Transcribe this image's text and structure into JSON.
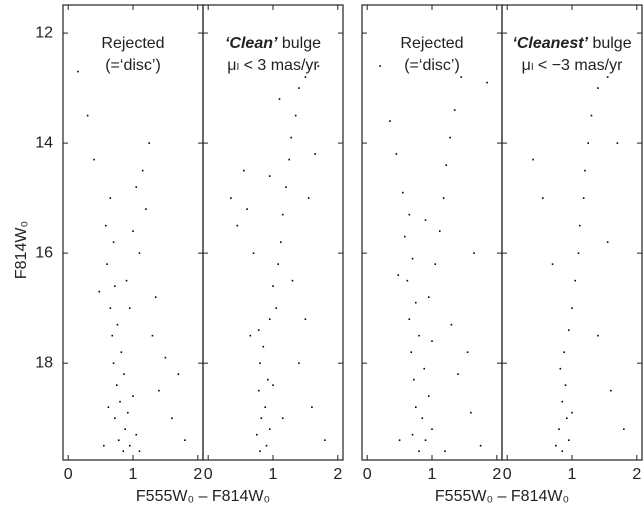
{
  "chart_data": [
    {
      "type": "scatter",
      "color": "#000000",
      "ylabel": "F814W₀",
      "ytick_labels": true,
      "xlabel": "F555W₀ – F814W₀",
      "label_lines": [
        [
          {
            "text": "Rejected"
          }
        ],
        [
          {
            "text": "(=‘disc’)"
          }
        ]
      ],
      "xlim": [
        -0.08,
        2.08
      ],
      "ylim": [
        19.76,
        11.49
      ],
      "xticks": [
        0,
        1,
        2
      ],
      "yticks": [
        12,
        14,
        16,
        18
      ],
      "x": [
        0.85,
        0.95,
        0.78,
        1.05,
        0.88,
        0.72,
        0.92,
        0.8,
        1.0,
        0.75,
        0.86,
        0.7,
        0.82,
        0.68,
        0.76,
        0.65,
        0.72,
        0.6,
        0.7,
        0.58,
        0.65,
        0.9,
        1.1,
        1.2,
        1.15,
        1.25,
        1.05,
        0.4,
        0.3,
        1.4,
        1.6,
        1.8,
        1.3,
        1.5,
        0.55,
        0.95,
        1.2,
        0.15,
        1.0,
        0.62,
        1.1,
        1.35,
        0.48,
        1.7
      ],
      "values": [
        19.6,
        19.5,
        19.4,
        19.3,
        19.2,
        19.0,
        18.9,
        18.7,
        18.6,
        18.4,
        18.2,
        18.0,
        17.8,
        17.5,
        17.3,
        17.0,
        16.6,
        16.2,
        15.8,
        15.5,
        15.0,
        16.5,
        16.0,
        15.2,
        14.5,
        14.0,
        14.8,
        14.3,
        13.5,
        18.5,
        19.0,
        19.4,
        17.5,
        17.9,
        19.5,
        17.0,
        12.6,
        12.7,
        15.6,
        18.8,
        19.6,
        16.8,
        16.7,
        18.2
      ]
    },
    {
      "type": "scatter",
      "color": "#000000",
      "ytick_labels": false,
      "label_lines": [
        [
          {
            "text": "‘Clean’",
            "bold_italic": true
          },
          {
            "text": " bulge"
          }
        ],
        [
          {
            "text": "μₗ < 3 mas/yr"
          }
        ]
      ],
      "xlim": [
        -0.08,
        2.08
      ],
      "ylim": [
        19.76,
        11.49
      ],
      "xticks": [
        0,
        1,
        2
      ],
      "yticks": [
        12,
        14,
        16,
        18
      ],
      "x": [
        0.8,
        0.9,
        0.75,
        0.95,
        0.82,
        0.88,
        0.78,
        0.92,
        0.8,
        0.85,
        0.78,
        0.95,
        1.05,
        1.0,
        1.08,
        1.12,
        1.15,
        1.2,
        1.25,
        1.28,
        1.35,
        1.4,
        0.7,
        0.6,
        0.55,
        0.45,
        1.4,
        1.6,
        1.8,
        1.5,
        1.3,
        1.55,
        1.65,
        1.5,
        1.7,
        0.35,
        0.65,
        1.0,
        1.15,
        0.95,
        1.1
      ],
      "values": [
        19.6,
        19.5,
        19.3,
        19.2,
        19.0,
        18.8,
        18.5,
        18.3,
        18.0,
        17.7,
        17.4,
        17.2,
        17.0,
        16.6,
        16.2,
        15.8,
        15.3,
        14.8,
        14.3,
        13.9,
        13.5,
        13.0,
        16.0,
        15.2,
        14.5,
        15.5,
        18.0,
        18.8,
        19.4,
        17.2,
        16.5,
        15.0,
        14.2,
        12.8,
        12.6,
        15.0,
        17.5,
        18.4,
        19.0,
        14.6,
        13.2
      ]
    },
    {
      "type": "scatter",
      "color": "#000000",
      "ytick_labels": false,
      "xlabel": "F555W₀ – F814W₀",
      "label_lines": [
        [
          {
            "text": "Rejected"
          }
        ],
        [
          {
            "text": "(=‘disc’)"
          }
        ]
      ],
      "xlim": [
        -0.08,
        2.08
      ],
      "ylim": [
        19.76,
        11.49
      ],
      "xticks": [
        0,
        1,
        2
      ],
      "yticks": [
        12,
        14,
        16,
        18
      ],
      "x": [
        0.8,
        0.9,
        0.7,
        1.0,
        0.85,
        0.75,
        0.95,
        0.72,
        0.88,
        0.68,
        0.8,
        0.65,
        0.75,
        0.62,
        0.7,
        0.58,
        0.65,
        0.55,
        0.95,
        1.05,
        1.12,
        1.18,
        1.22,
        1.28,
        1.35,
        1.45,
        0.45,
        0.35,
        0.2,
        1.4,
        1.6,
        1.75,
        1.3,
        1.55,
        0.5,
        1.0,
        1.85,
        0.9,
        1.2,
        0.48,
        1.65
      ],
      "values": [
        19.6,
        19.4,
        19.3,
        19.2,
        19.0,
        18.8,
        18.6,
        18.3,
        18.1,
        17.8,
        17.5,
        17.2,
        16.9,
        16.5,
        16.1,
        15.7,
        15.3,
        14.9,
        16.8,
        16.2,
        15.6,
        15.0,
        14.4,
        13.9,
        13.4,
        12.8,
        14.2,
        13.6,
        12.6,
        18.2,
        18.9,
        19.5,
        17.3,
        17.8,
        19.4,
        17.6,
        12.9,
        15.4,
        19.6,
        16.4,
        16.0
      ]
    },
    {
      "type": "scatter",
      "color": "#000000",
      "ytick_labels": false,
      "label_lines": [
        [
          {
            "text": "‘Cleanest’",
            "bold_italic": true
          },
          {
            "text": " bulge"
          }
        ],
        [
          {
            "text": "μₗ < −3 mas/yr"
          }
        ]
      ],
      "xlim": [
        -0.08,
        2.08
      ],
      "ylim": [
        19.76,
        11.49
      ],
      "xticks": [
        0,
        1,
        2
      ],
      "yticks": [
        12,
        14,
        16,
        18
      ],
      "x": [
        0.85,
        0.95,
        0.8,
        0.92,
        0.85,
        0.9,
        0.82,
        0.88,
        0.95,
        1.0,
        1.05,
        1.1,
        1.12,
        1.18,
        1.2,
        1.25,
        1.3,
        1.4,
        0.7,
        0.55,
        1.4,
        1.6,
        1.8,
        1.55,
        1.7,
        1.55,
        0.4,
        0.75,
        1.0
      ],
      "values": [
        19.6,
        19.4,
        19.2,
        19.0,
        18.7,
        18.4,
        18.1,
        17.8,
        17.4,
        17.0,
        16.5,
        16.0,
        15.5,
        15.0,
        14.5,
        14.0,
        13.5,
        13.0,
        16.2,
        15.0,
        17.5,
        18.5,
        19.2,
        15.8,
        14.0,
        12.8,
        14.3,
        19.5,
        18.9
      ]
    }
  ]
}
